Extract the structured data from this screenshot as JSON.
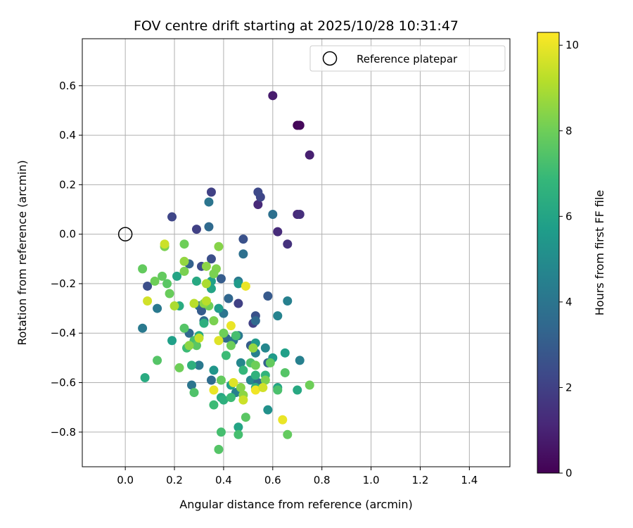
{
  "chart_data": {
    "type": "scatter",
    "title": "FOV centre drift starting at 2025/10/28 10:31:47",
    "xlabel": "Angular distance from reference (arcmin)",
    "ylabel": "Rotation from reference (arcmin)",
    "xlim": [
      -0.175,
      1.565
    ],
    "ylim": [
      -0.94,
      0.79
    ],
    "xticks": [
      0.0,
      0.2,
      0.4,
      0.6,
      0.8,
      1.0,
      1.2,
      1.4
    ],
    "xtick_labels": [
      "0.0",
      "0.2",
      "0.4",
      "0.6",
      "0.8",
      "1.0",
      "1.2",
      "1.4"
    ],
    "yticks": [
      -0.8,
      -0.6,
      -0.4,
      -0.2,
      0.0,
      0.2,
      0.4,
      0.6
    ],
    "ytick_labels": [
      "−0.8",
      "−0.6",
      "−0.4",
      "−0.2",
      "0.0",
      "0.2",
      "0.4",
      "0.6"
    ],
    "grid": true,
    "legend": {
      "position": "top-right",
      "entries": [
        "Reference platepar"
      ]
    },
    "reference_point": {
      "x": 0.0,
      "y": 0.0,
      "label": "Reference platepar"
    },
    "colorbar": {
      "label": "Hours from first FF file",
      "range": [
        0,
        10.3
      ],
      "ticks": [
        0,
        2,
        4,
        6,
        8,
        10
      ],
      "tick_labels": [
        "0",
        "2",
        "4",
        "6",
        "8",
        "10"
      ],
      "colormap": [
        "#440154",
        "#482878",
        "#3e4989",
        "#31688e",
        "#26828e",
        "#1f9e89",
        "#35b779",
        "#6ece58",
        "#b5de2b",
        "#fde725"
      ]
    },
    "points": [
      [
        0.6,
        0.56,
        0.8
      ],
      [
        0.7,
        0.44,
        0.1
      ],
      [
        0.71,
        0.44,
        0.2
      ],
      [
        0.75,
        0.32,
        0.9
      ],
      [
        0.7,
        0.08,
        1.2
      ],
      [
        0.71,
        0.08,
        1.4
      ],
      [
        0.54,
        0.12,
        1.2
      ],
      [
        0.62,
        0.01,
        1.3
      ],
      [
        0.66,
        -0.04,
        1.5
      ],
      [
        0.55,
        0.15,
        2.2
      ],
      [
        0.35,
        0.17,
        2.0
      ],
      [
        0.54,
        0.17,
        2.3
      ],
      [
        0.19,
        0.07,
        2.2
      ],
      [
        0.29,
        0.02,
        2.0
      ],
      [
        0.48,
        -0.02,
        2.6
      ],
      [
        0.09,
        -0.21,
        2.5
      ],
      [
        0.6,
        0.08,
        3.8
      ],
      [
        0.34,
        0.13,
        4.0
      ],
      [
        0.34,
        0.03,
        3.5
      ],
      [
        0.48,
        -0.08,
        3.8
      ],
      [
        0.35,
        -0.1,
        2.5
      ],
      [
        0.31,
        -0.13,
        2.4
      ],
      [
        0.26,
        -0.12,
        3.2
      ],
      [
        0.39,
        -0.18,
        3.0
      ],
      [
        0.46,
        -0.28,
        2.0
      ],
      [
        0.53,
        -0.33,
        2.6
      ],
      [
        0.52,
        -0.36,
        2.0
      ],
      [
        0.46,
        -0.19,
        4.2
      ],
      [
        0.58,
        -0.25,
        2.9
      ],
      [
        0.42,
        -0.26,
        3.4
      ],
      [
        0.33,
        -0.28,
        3.3
      ],
      [
        0.3,
        -0.29,
        3.8
      ],
      [
        0.31,
        -0.31,
        3.0
      ],
      [
        0.32,
        -0.35,
        3.6
      ],
      [
        0.4,
        -0.32,
        4.0
      ],
      [
        0.13,
        -0.3,
        4.2
      ],
      [
        0.07,
        -0.38,
        4.2
      ],
      [
        0.62,
        -0.33,
        4.6
      ],
      [
        0.66,
        -0.27,
        4.5
      ],
      [
        0.53,
        -0.35,
        3.5
      ],
      [
        0.41,
        -0.42,
        3.5
      ],
      [
        0.44,
        -0.43,
        4.0
      ],
      [
        0.26,
        -0.4,
        3.5
      ],
      [
        0.46,
        -0.41,
        4.2
      ],
      [
        0.51,
        -0.45,
        3.0
      ],
      [
        0.53,
        -0.48,
        4.5
      ],
      [
        0.57,
        -0.46,
        4.8
      ],
      [
        0.71,
        -0.51,
        4.5
      ],
      [
        0.58,
        -0.52,
        3.2
      ],
      [
        0.47,
        -0.52,
        4.8
      ],
      [
        0.35,
        -0.59,
        3.6
      ],
      [
        0.3,
        -0.53,
        4.2
      ],
      [
        0.27,
        -0.61,
        4.0
      ],
      [
        0.51,
        -0.59,
        4.8
      ],
      [
        0.54,
        -0.6,
        3.6
      ],
      [
        0.45,
        -0.64,
        4.5
      ],
      [
        0.58,
        -0.71,
        5.2
      ],
      [
        0.65,
        -0.48,
        5.8
      ],
      [
        0.6,
        -0.5,
        5.6
      ],
      [
        0.53,
        -0.44,
        5.5
      ],
      [
        0.36,
        -0.55,
        5.4
      ],
      [
        0.43,
        -0.61,
        5.8
      ],
      [
        0.46,
        -0.78,
        6.0
      ],
      [
        0.39,
        -0.66,
        6.2
      ],
      [
        0.62,
        -0.62,
        6.0
      ],
      [
        0.7,
        -0.63,
        6.2
      ],
      [
        0.35,
        -0.19,
        5.8
      ],
      [
        0.35,
        -0.22,
        6.0
      ],
      [
        0.29,
        -0.19,
        6.2
      ],
      [
        0.19,
        -0.43,
        5.8
      ],
      [
        0.08,
        -0.58,
        6.3
      ],
      [
        0.21,
        -0.17,
        6.0
      ],
      [
        0.22,
        -0.29,
        6.3
      ],
      [
        0.32,
        -0.36,
        6.5
      ],
      [
        0.3,
        -0.41,
        6.2
      ],
      [
        0.27,
        -0.53,
        6.5
      ],
      [
        0.38,
        -0.3,
        5.7
      ],
      [
        0.46,
        -0.2,
        5.6
      ],
      [
        0.48,
        -0.55,
        6.8
      ],
      [
        0.53,
        -0.62,
        6.5
      ],
      [
        0.57,
        -0.57,
        6.7
      ],
      [
        0.53,
        -0.57,
        6.6
      ],
      [
        0.4,
        -0.67,
        6.5
      ],
      [
        0.36,
        -0.69,
        7.0
      ],
      [
        0.46,
        -0.81,
        7.2
      ],
      [
        0.38,
        -0.87,
        7.5
      ],
      [
        0.39,
        -0.8,
        7.2
      ],
      [
        0.41,
        -0.49,
        7.0
      ],
      [
        0.45,
        -0.41,
        7.2
      ],
      [
        0.51,
        -0.52,
        7.4
      ],
      [
        0.59,
        -0.52,
        7.8
      ],
      [
        0.65,
        -0.56,
        7.5
      ],
      [
        0.62,
        -0.63,
        7.3
      ],
      [
        0.66,
        -0.81,
        7.8
      ],
      [
        0.75,
        -0.61,
        8.0
      ],
      [
        0.49,
        -0.74,
        7.6
      ],
      [
        0.43,
        -0.66,
        7.0
      ],
      [
        0.39,
        -0.59,
        7.8
      ],
      [
        0.25,
        -0.46,
        7.0
      ],
      [
        0.24,
        -0.38,
        7.5
      ],
      [
        0.28,
        -0.43,
        7.2
      ],
      [
        0.29,
        -0.45,
        7.6
      ],
      [
        0.28,
        -0.64,
        7.4
      ],
      [
        0.22,
        -0.54,
        8.0
      ],
      [
        0.13,
        -0.51,
        7.5
      ],
      [
        0.15,
        -0.17,
        7.8
      ],
      [
        0.18,
        -0.24,
        7.9
      ],
      [
        0.17,
        -0.2,
        7.6
      ],
      [
        0.12,
        -0.19,
        8.0
      ],
      [
        0.07,
        -0.14,
        7.8
      ],
      [
        0.24,
        -0.15,
        8.2
      ],
      [
        0.24,
        -0.04,
        8.0
      ],
      [
        0.16,
        -0.05,
        8.2
      ],
      [
        0.34,
        -0.29,
        8.0
      ],
      [
        0.37,
        -0.14,
        8.3
      ],
      [
        0.36,
        -0.35,
        8.2
      ],
      [
        0.4,
        -0.4,
        8.0
      ],
      [
        0.43,
        -0.45,
        8.0
      ],
      [
        0.38,
        -0.05,
        8.4
      ],
      [
        0.32,
        -0.28,
        8.5
      ],
      [
        0.52,
        -0.46,
        8.6
      ],
      [
        0.53,
        -0.53,
        8.0
      ],
      [
        0.57,
        -0.59,
        8.2
      ],
      [
        0.47,
        -0.62,
        8.4
      ],
      [
        0.48,
        -0.65,
        8.5
      ],
      [
        0.26,
        -0.45,
        8.5
      ],
      [
        0.33,
        -0.13,
        8.5
      ],
      [
        0.36,
        -0.16,
        8.2
      ],
      [
        0.24,
        -0.11,
        8.6
      ],
      [
        0.2,
        -0.29,
        9.0
      ],
      [
        0.28,
        -0.28,
        9.2
      ],
      [
        0.33,
        -0.2,
        9.0
      ],
      [
        0.16,
        -0.04,
        9.5
      ],
      [
        0.09,
        -0.27,
        9.6
      ],
      [
        0.33,
        -0.27,
        9.2
      ],
      [
        0.3,
        -0.42,
        9.4
      ],
      [
        0.38,
        -0.43,
        9.8
      ],
      [
        0.43,
        -0.37,
        10.0
      ],
      [
        0.49,
        -0.21,
        10.0
      ],
      [
        0.36,
        -0.63,
        10.0
      ],
      [
        0.44,
        -0.6,
        9.8
      ],
      [
        0.48,
        -0.67,
        9.5
      ],
      [
        0.53,
        -0.63,
        10.1
      ],
      [
        0.64,
        -0.75,
        10.0
      ],
      [
        0.56,
        -0.62,
        9.6
      ]
    ]
  }
}
